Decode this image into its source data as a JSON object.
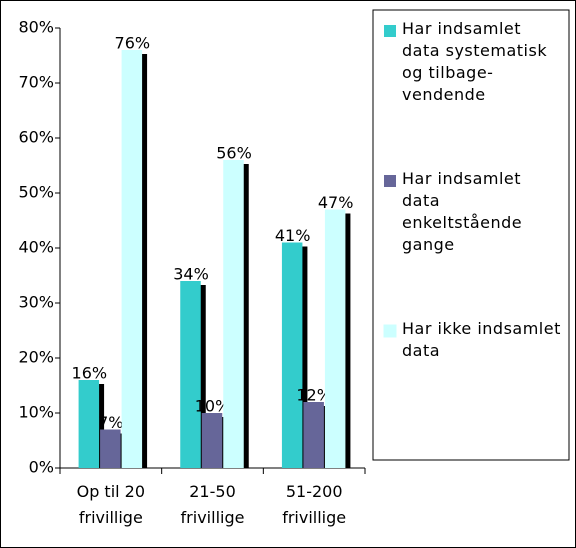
{
  "chart_data": {
    "type": "bar",
    "categories": [
      "Op til 20 frivillige",
      "21-50 frivillige",
      "51-200 frivillige"
    ],
    "series": [
      {
        "name": "Har indsamlet data systematisk og tilbage-vendende",
        "color": "#33cccc",
        "values": [
          16,
          34,
          41
        ],
        "value_labels": [
          "16%",
          "34%",
          "41%"
        ]
      },
      {
        "name": "Har indsamlet data enkeltstående gange",
        "color": "#666699",
        "values": [
          7,
          10,
          12
        ],
        "value_labels": [
          "7%",
          "10%",
          "12%"
        ]
      },
      {
        "name": "Har ikke indsamlet data",
        "color": "#ccffff",
        "values": [
          76,
          56,
          47
        ],
        "value_labels": [
          "76%",
          "56%",
          "47%"
        ]
      }
    ],
    "ylim": [
      0,
      80
    ],
    "yticks": [
      {
        "value": 0,
        "label": "0%"
      },
      {
        "value": 10,
        "label": "10%"
      },
      {
        "value": 20,
        "label": "20%"
      },
      {
        "value": 30,
        "label": "30%"
      },
      {
        "value": 40,
        "label": "40%"
      },
      {
        "value": 50,
        "label": "50%"
      },
      {
        "value": 60,
        "label": "60%"
      },
      {
        "value": 70,
        "label": "70%"
      },
      {
        "value": 80,
        "label": "80%"
      }
    ],
    "legend": "right"
  }
}
